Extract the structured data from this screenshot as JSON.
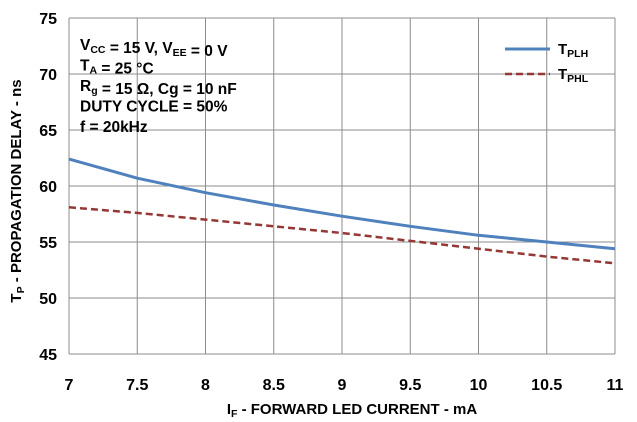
{
  "chart_data": {
    "type": "line",
    "xlabel": "I_F - FORWARD LED CURRENT - mA",
    "xlabel_parts": {
      "main": "I",
      "sub": "F",
      "rest": " - FORWARD LED CURRENT - mA"
    },
    "ylabel": "T_P - PROPAGATION DELAY - ns",
    "ylabel_parts": {
      "main": "T",
      "sub": "P",
      "rest": " - PROPAGATION DELAY - ns"
    },
    "xlim": [
      7,
      11
    ],
    "ylim": [
      45,
      75
    ],
    "x_ticks": [
      7,
      7.5,
      8,
      8.5,
      9,
      9.5,
      10,
      10.5,
      11
    ],
    "y_ticks": [
      45,
      50,
      55,
      60,
      65,
      70,
      75
    ],
    "grid": true,
    "legend_position": "top-right",
    "annotations": [
      {
        "parts": [
          [
            "V",
            ""
          ],
          [
            "CC",
            "sub"
          ],
          [
            " = 15 V, V",
            ""
          ],
          [
            "EE",
            "sub"
          ],
          [
            " = 0 V",
            ""
          ]
        ]
      },
      {
        "parts": [
          [
            "T",
            ""
          ],
          [
            "A",
            "sub"
          ],
          [
            " = 25 °C",
            ""
          ]
        ]
      },
      {
        "parts": [
          [
            "R",
            ""
          ],
          [
            "g",
            "sub"
          ],
          [
            " = 15 Ω, Cg = 10 nF",
            ""
          ]
        ]
      },
      {
        "parts": [
          [
            "DUTY CYCLE = 50%",
            ""
          ]
        ]
      },
      {
        "parts": [
          [
            "f = 20kHz",
            ""
          ]
        ]
      }
    ],
    "series": [
      {
        "name": "T_PLH",
        "name_parts": {
          "main": "T",
          "sub": "PLH"
        },
        "color": "#4f81bd",
        "style": "solid",
        "x": [
          7,
          7.5,
          8,
          8.5,
          9,
          9.5,
          10,
          10.5,
          11
        ],
        "y": [
          62.4,
          60.7,
          59.4,
          58.3,
          57.3,
          56.4,
          55.6,
          55.0,
          54.4
        ]
      },
      {
        "name": "T_PHL",
        "name_parts": {
          "main": "T",
          "sub": "PHL"
        },
        "color": "#953735",
        "style": "dashed",
        "x": [
          7,
          7.5,
          8,
          8.5,
          9,
          9.5,
          10,
          10.5,
          11
        ],
        "y": [
          58.1,
          57.6,
          57.0,
          56.4,
          55.8,
          55.1,
          54.4,
          53.7,
          53.1
        ]
      }
    ]
  }
}
